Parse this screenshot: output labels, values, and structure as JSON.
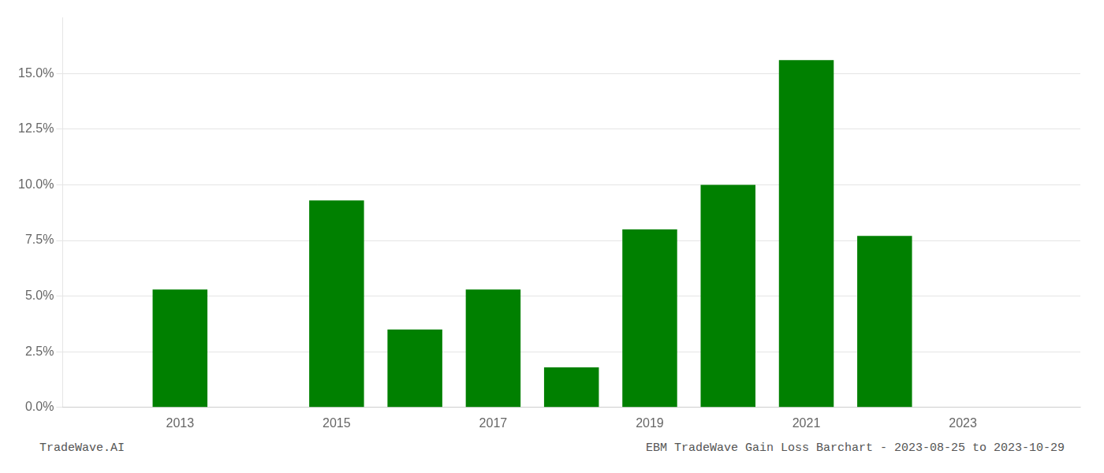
{
  "chart_data": {
    "type": "bar",
    "x": [
      2013,
      2015,
      2016,
      2017,
      2018,
      2019,
      2020,
      2021,
      2022
    ],
    "values": [
      0.053,
      0.093,
      0.035,
      0.053,
      0.018,
      0.08,
      0.1,
      0.156,
      0.077
    ],
    "color": "#008000",
    "xlim": [
      2011.5,
      2024.5
    ],
    "xticks": [
      2013,
      2015,
      2017,
      2019,
      2021,
      2023
    ],
    "ylim": [
      0,
      0.175
    ],
    "yticks": [
      {
        "value": 0.0,
        "label": "0.0%"
      },
      {
        "value": 0.025,
        "label": "2.5%"
      },
      {
        "value": 0.05,
        "label": "5.0%"
      },
      {
        "value": 0.075,
        "label": "7.5%"
      },
      {
        "value": 0.1,
        "label": "10.0%"
      },
      {
        "value": 0.125,
        "label": "12.5%"
      },
      {
        "value": 0.15,
        "label": "15.0%"
      }
    ],
    "grid": true,
    "annotations": [
      "TradeWave.AI",
      "EBM TradeWave Gain Loss Barchart - 2023-08-25 to 2023-10-29"
    ]
  }
}
